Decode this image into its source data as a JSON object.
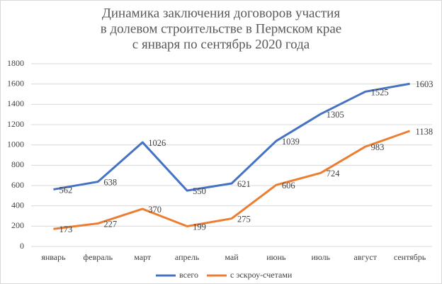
{
  "chart_data": {
    "type": "line",
    "title": [
      "Динамика заключения договоров участия",
      "в долевом строительстве в Пермском крае",
      "с января по сентябрь 2020 года"
    ],
    "categories": [
      "январь",
      "февраль",
      "март",
      "апрель",
      "май",
      "июнь",
      "июль",
      "август",
      "сентябрь"
    ],
    "series": [
      {
        "name": "всего",
        "color": "#4472c4",
        "values": [
          562,
          638,
          1026,
          550,
          621,
          1039,
          1305,
          1525,
          1603
        ]
      },
      {
        "name": "с эскроу-счетами",
        "color": "#ed7d31",
        "values": [
          173,
          227,
          370,
          199,
          275,
          606,
          724,
          983,
          1138
        ]
      }
    ],
    "ylim": [
      0,
      1800
    ],
    "yticks": [
      0,
      200,
      400,
      600,
      800,
      1000,
      1200,
      1400,
      1600,
      1800
    ],
    "grid": true,
    "legend": "bottom"
  }
}
